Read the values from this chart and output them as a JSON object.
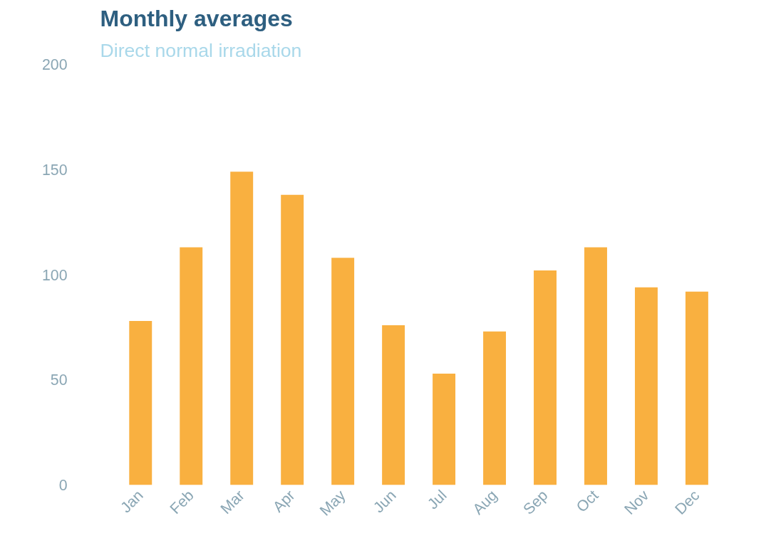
{
  "chart_data": {
    "type": "bar",
    "title": "Monthly averages",
    "subtitle": "Direct normal irradiation",
    "categories": [
      "Jan",
      "Feb",
      "Mar",
      "Apr",
      "May",
      "Jun",
      "Jul",
      "Aug",
      "Sep",
      "Oct",
      "Nov",
      "Dec"
    ],
    "values": [
      78,
      113,
      149,
      138,
      108,
      76,
      53,
      73,
      102,
      113,
      94,
      92
    ],
    "color": "#f9b040",
    "ylim": [
      0,
      200
    ],
    "yticks": [
      0,
      50,
      100,
      150,
      200
    ],
    "grid": false
  }
}
